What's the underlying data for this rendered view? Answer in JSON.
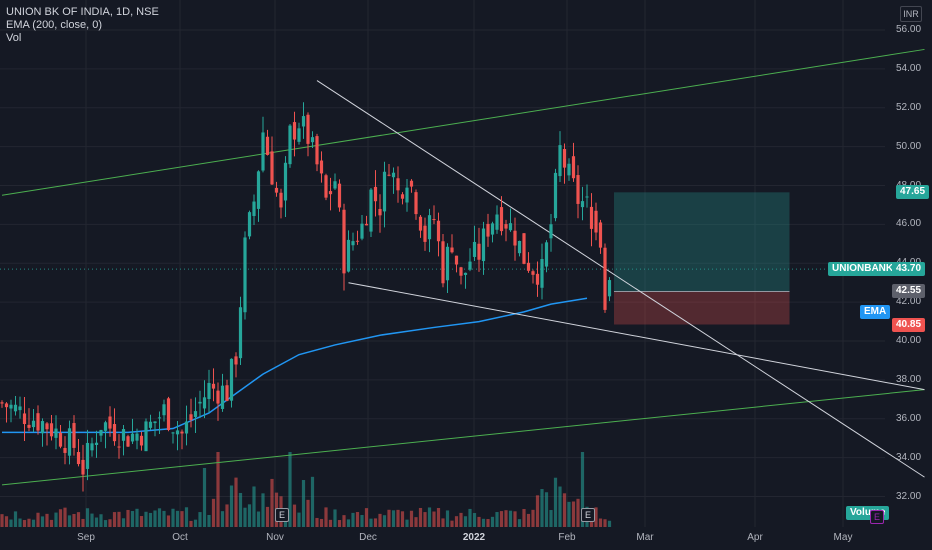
{
  "legend": {
    "symbol": "UNION BK OF INDIA, 1D, NSE",
    "ema": "EMA (200, close, 0)",
    "vol": "Vol"
  },
  "currency": "INR",
  "y_ticks": [
    "56.00",
    "54.00",
    "52.00",
    "50.00",
    "48.00",
    "46.00",
    "44.00",
    "42.00",
    "40.00",
    "38.00",
    "36.00",
    "34.00",
    "32.00"
  ],
  "x_ticks": [
    {
      "label": "Sep",
      "bold": false
    },
    {
      "label": "Oct",
      "bold": false
    },
    {
      "label": "Nov",
      "bold": false
    },
    {
      "label": "Dec",
      "bold": false
    },
    {
      "label": "2022",
      "bold": true
    },
    {
      "label": "Feb",
      "bold": false
    },
    {
      "label": "Mar",
      "bold": false
    },
    {
      "label": "Apr",
      "bold": false
    },
    {
      "label": "May",
      "bold": false
    }
  ],
  "price_tags": {
    "target": {
      "text": "47.65",
      "value": 47.65,
      "color": "#26a69a"
    },
    "symbol_label": {
      "text": "UNIONBANK",
      "color": "#26a69a"
    },
    "last": {
      "text": "43.70",
      "value": 43.7,
      "color": "#26a69a"
    },
    "entry": {
      "text": "42.55",
      "value": 42.55,
      "color": "#5d606b"
    },
    "ema_label": {
      "text": "EMA",
      "color": "#2196f3"
    },
    "stop": {
      "text": "40.85",
      "value": 40.85,
      "color": "#ef5350"
    },
    "volume_label": {
      "text": "Volume",
      "color": "#26a69a"
    }
  },
  "earnings_markers": [
    {
      "label": "E",
      "date_index": 60
    },
    {
      "label": "E",
      "date_index": 122
    }
  ],
  "future_marker": "E",
  "chart_data": {
    "type": "candlestick",
    "ylim": [
      31,
      57
    ],
    "y_axis": "price (INR), right side",
    "colors": {
      "up": "#26a69a",
      "down": "#ef5350",
      "ema": "#2196f3",
      "channel": "#4caf50",
      "trend": "#d1d4dc"
    },
    "x_months": [
      "Sep",
      "Oct",
      "Nov",
      "Dec",
      "2022",
      "Feb",
      "Mar",
      "Apr",
      "May"
    ],
    "ohlc_anchors": [
      [
        0,
        36.8
      ],
      [
        10,
        35.7
      ],
      [
        16,
        34.6
      ],
      [
        18,
        33.5
      ],
      [
        22,
        35.8
      ],
      [
        28,
        35.1
      ],
      [
        32,
        35.4
      ],
      [
        36,
        36.4
      ],
      [
        40,
        35.2
      ],
      [
        46,
        37.6
      ],
      [
        50,
        37.4
      ],
      [
        52,
        39.3
      ],
      [
        54,
        44.8
      ],
      [
        56,
        47.2
      ],
      [
        58,
        50.8
      ],
      [
        62,
        46.5
      ],
      [
        64,
        50.6
      ],
      [
        66,
        51.3
      ],
      [
        68,
        50.5
      ],
      [
        70,
        49.0
      ],
      [
        72,
        47.2
      ],
      [
        74,
        48.3
      ],
      [
        76,
        44.2
      ],
      [
        78,
        45.2
      ],
      [
        80,
        45.9
      ],
      [
        82,
        47.6
      ],
      [
        84,
        47.0
      ],
      [
        86,
        49.3
      ],
      [
        88,
        47.6
      ],
      [
        90,
        48.6
      ],
      [
        92,
        47.2
      ],
      [
        94,
        45.4
      ],
      [
        96,
        46.3
      ],
      [
        98,
        43.6
      ],
      [
        100,
        45.2
      ],
      [
        102,
        43.0
      ],
      [
        104,
        44.2
      ],
      [
        106,
        44.5
      ],
      [
        108,
        45.9
      ],
      [
        110,
        46.7
      ],
      [
        112,
        46.2
      ],
      [
        114,
        45.5
      ],
      [
        116,
        44.3
      ],
      [
        118,
        43.8
      ],
      [
        120,
        43.5
      ],
      [
        122,
        46.0
      ],
      [
        124,
        49.8
      ],
      [
        126,
        48.4
      ],
      [
        128,
        47.3
      ],
      [
        130,
        46.9
      ]
    ],
    "ema_200": [
      [
        0,
        35.3
      ],
      [
        28,
        35.3
      ],
      [
        38,
        35.5
      ],
      [
        46,
        36.3
      ],
      [
        52,
        37.3
      ],
      [
        58,
        38.3
      ],
      [
        66,
        39.3
      ],
      [
        74,
        39.8
      ],
      [
        84,
        40.3
      ],
      [
        96,
        40.7
      ],
      [
        106,
        41.0
      ],
      [
        116,
        41.5
      ],
      [
        122,
        41.9
      ],
      [
        130,
        42.2
      ]
    ],
    "channel_upper": [
      [
        0,
        47.5
      ],
      [
        205,
        55.0
      ]
    ],
    "channel_lower": [
      [
        0,
        32.6
      ],
      [
        205,
        37.5
      ]
    ],
    "trendline_upper": [
      [
        70,
        53.4
      ],
      [
        205,
        33.0
      ]
    ],
    "trendline_lower": [
      [
        77,
        43.0
      ],
      [
        205,
        37.5
      ]
    ],
    "position": {
      "type": "long",
      "entry": 42.55,
      "target": 47.65,
      "stop": 40.85,
      "start_index": 136,
      "end_index": 175
    },
    "last_price": 43.7
  }
}
